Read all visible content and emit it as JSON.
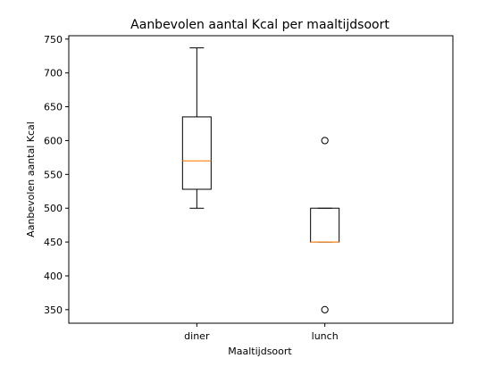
{
  "chart_data": {
    "type": "boxplot",
    "title": "Aanbevolen aantal Kcal per maaltijdsoort",
    "xlabel": "Maaltijdsoort",
    "ylabel": "Aanbevolen aantal Kcal",
    "ylim": [
      330,
      755
    ],
    "yticks": [
      350,
      400,
      450,
      500,
      550,
      600,
      650,
      700,
      750
    ],
    "grid": false,
    "boxes": [
      {
        "category": "diner",
        "whisker_low": 500,
        "q1": 528,
        "median": 570,
        "q3": 635,
        "whisker_high": 737,
        "outliers": []
      },
      {
        "category": "lunch",
        "whisker_low": 450,
        "q1": 450,
        "median": 450,
        "q3": 500,
        "whisker_high": 500,
        "outliers": [
          600,
          350
        ]
      }
    ],
    "colors": {
      "box": "#000000",
      "median": "#ff7f0e",
      "background": "#ffffff"
    }
  }
}
